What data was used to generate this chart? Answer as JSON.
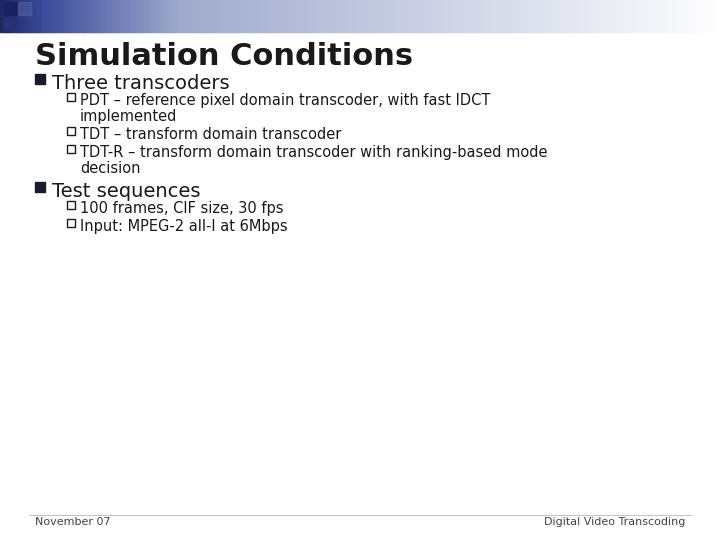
{
  "title": "Simulation Conditions",
  "title_fontsize": 22,
  "title_color": "#1a1a1a",
  "background_color": "#ffffff",
  "bullet1_text": "Three transcoders",
  "bullet1_fontsize": 14,
  "sub_bullet1_lines": [
    [
      "PDT – reference pixel domain transcoder, with fast IDCT",
      "implemented"
    ],
    [
      "TDT – transform domain transcoder"
    ],
    [
      "TDT-R – transform domain transcoder with ranking-based mode",
      "decision"
    ]
  ],
  "bullet2_text": "Test sequences",
  "bullet2_fontsize": 14,
  "sub_bullet2_lines": [
    [
      "100 frames, CIF size, 30 fps"
    ],
    [
      "Input: MPEG-2 all-I at 6Mbps"
    ]
  ],
  "sub_bullet_fontsize": 10.5,
  "bullet_color": "#1a1a2e",
  "text_color": "#1a1a1a",
  "footer_left": "November 07",
  "footer_right": "Digital Video Transcoding",
  "footer_fontsize": 8
}
